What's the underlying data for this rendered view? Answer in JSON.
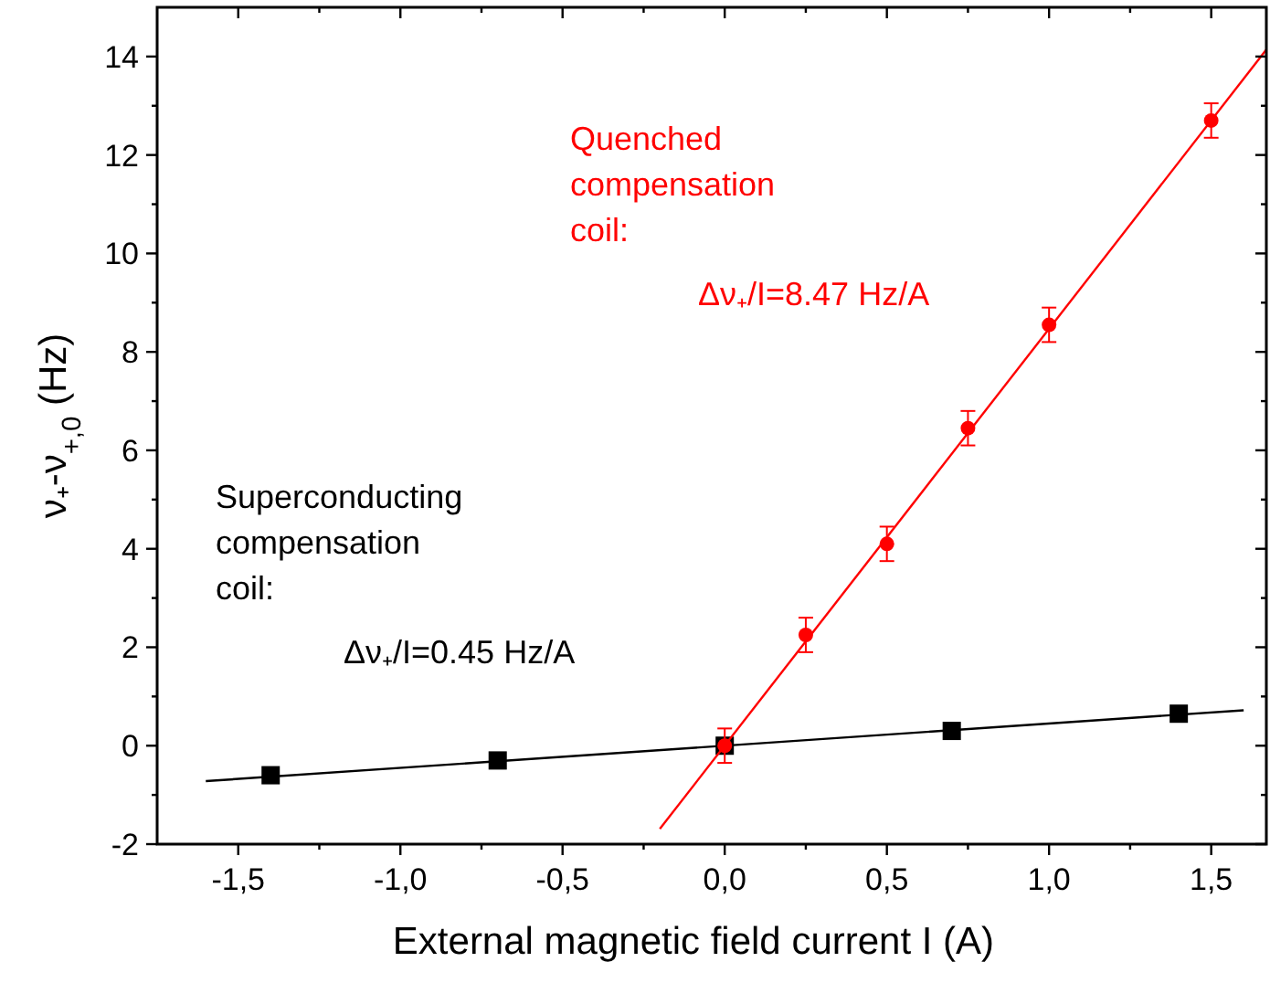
{
  "chart_data": {
    "type": "scatter",
    "xlabel": "External magnetic field current I (A)",
    "ylabel": "ν₊-ν$_{+,0}$ (Hz)",
    "xlim": [
      -1.75,
      1.67
    ],
    "ylim": [
      -2,
      15
    ],
    "xticks": [
      {
        "value": -1.5,
        "label": "-1,5"
      },
      {
        "value": -1.25,
        "label": null
      },
      {
        "value": -1,
        "label": "-1,0"
      },
      {
        "value": -0.75,
        "label": null
      },
      {
        "value": -0.5,
        "label": "-0,5"
      },
      {
        "value": -0.25,
        "label": null
      },
      {
        "value": 0,
        "label": "0,0"
      },
      {
        "value": 0.25,
        "label": null
      },
      {
        "value": 0.5,
        "label": "0,5"
      },
      {
        "value": 0.75,
        "label": null
      },
      {
        "value": 1,
        "label": "1,0"
      },
      {
        "value": 1.25,
        "label": null
      },
      {
        "value": 1.5,
        "label": "1,5"
      }
    ],
    "yticks": [
      -2,
      {
        "value": -1,
        "label": null
      },
      0,
      {
        "value": 1,
        "label": null
      },
      2,
      {
        "value": 3,
        "label": null
      },
      4,
      {
        "value": 5,
        "label": null
      },
      6,
      {
        "value": 7,
        "label": null
      },
      8,
      {
        "value": 9,
        "label": null
      },
      10,
      {
        "value": 11,
        "label": null
      },
      12,
      {
        "value": 13,
        "label": null
      },
      14
    ],
    "series": [
      {
        "color": "#000000",
        "marker": "square",
        "x": [
          -1.4,
          -0.7,
          0,
          0.7,
          1.4
        ],
        "values": [
          -0.6,
          -0.3,
          0,
          0.3,
          0.65
        ]
      },
      {
        "type": "line",
        "color": "#000000",
        "marker": "none",
        "x": [
          -1.6,
          1.6
        ],
        "values": [
          -0.72,
          0.72
        ]
      },
      {
        "color": "#ff0000",
        "marker": "circle",
        "x": [
          0,
          0.25,
          0.5,
          0.75,
          1,
          1.5
        ],
        "values": [
          0,
          2.25,
          4.1,
          6.45,
          8.55,
          12.7
        ],
        "errors": [
          0.35,
          0.35,
          0.35,
          0.35,
          0.35,
          0.35
        ]
      },
      {
        "type": "line",
        "color": "#ff0000",
        "marker": "none",
        "x": [
          -0.2,
          1.67
        ],
        "values": [
          -1.69,
          14.14
        ]
      }
    ],
    "annotations": [
      "Superconducting",
      "compensation",
      "coil:",
      "Δν₊/I=0.45 Hz/A",
      "Quenched",
      "compensation",
      "coil:",
      "Δν₊/I=8.47 Hz/A"
    ]
  }
}
